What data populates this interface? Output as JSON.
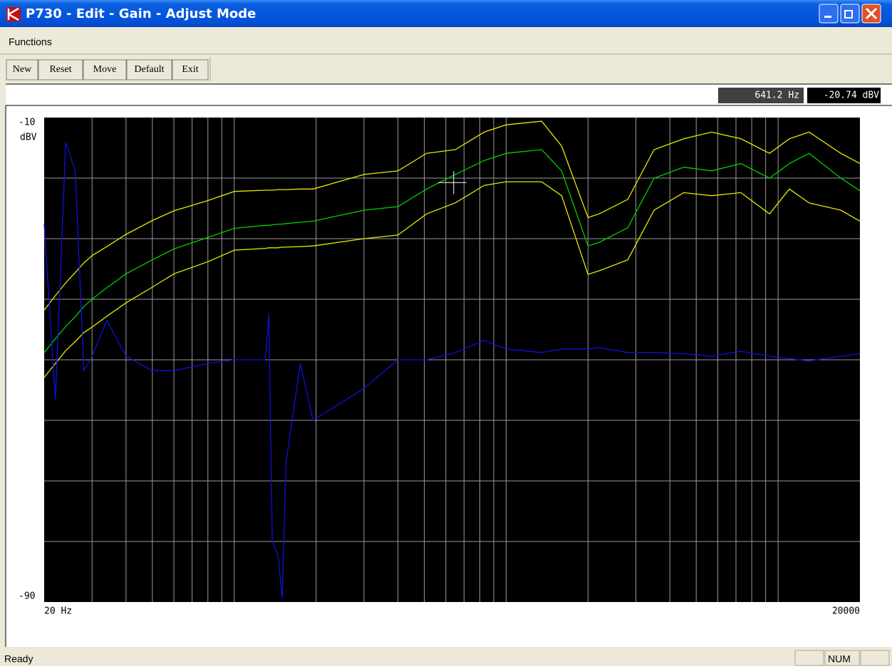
{
  "window": {
    "title": "P730 - Edit - Gain - Adjust Mode",
    "menu": [
      "Functions"
    ],
    "toolbar": [
      "New",
      "Reset",
      "Move",
      "Default",
      "Exit"
    ],
    "status": "Ready",
    "indicators": [
      "NUM"
    ]
  },
  "chart_data": {
    "type": "line",
    "y_label": "dBV",
    "xscale": "log",
    "x": [
      20,
      22,
      24,
      26,
      28,
      30,
      34,
      40,
      50,
      60,
      80,
      100,
      130,
      134,
      138,
      145,
      150,
      155,
      175,
      195,
      300,
      400,
      510,
      650,
      830,
      1000,
      1350,
      1600,
      2000,
      2200,
      2800,
      3500,
      4500,
      5700,
      7300,
      9300,
      11000,
      13000,
      17000,
      20000
    ],
    "series": [
      {
        "color": "#e8e800",
        "values": [
          -41.8,
          -39.4,
          -37.3,
          -35.6,
          -34.0,
          -32.8,
          -31.3,
          -29.3,
          -27.0,
          -25.4,
          -23.7,
          -22.2,
          -22.0,
          -22.0,
          -22.0,
          -21.9,
          -21.9,
          -21.9,
          -21.8,
          -21.8,
          -19.4,
          -18.8,
          -15.9,
          -15.3,
          -12.4,
          -11.2,
          -10.6,
          -14.7,
          -26.5,
          -25.9,
          -23.5,
          -15.3,
          -13.5,
          -12.4,
          -13.5,
          -15.9,
          -13.5,
          -12.4,
          -15.9,
          -17.6
        ]
      },
      {
        "color": "#00d000",
        "values": [
          -48.8,
          -46.5,
          -44.5,
          -42.9,
          -41.2,
          -40.0,
          -38.1,
          -35.8,
          -33.5,
          -31.7,
          -29.8,
          -28.3,
          -27.8,
          -27.8,
          -27.7,
          -27.6,
          -27.6,
          -27.5,
          -27.3,
          -27.1,
          -25.3,
          -24.7,
          -21.8,
          -19.4,
          -17.1,
          -15.9,
          -15.3,
          -18.8,
          -31.2,
          -30.6,
          -28.2,
          -20.0,
          -18.2,
          -18.8,
          -17.6,
          -20.0,
          -17.6,
          -15.9,
          -20.0,
          -22.1
        ]
      },
      {
        "color": "#e8e800",
        "values": [
          -52.9,
          -50.6,
          -48.5,
          -47.0,
          -45.5,
          -44.6,
          -42.8,
          -40.6,
          -38.0,
          -35.8,
          -33.8,
          -31.9,
          -31.6,
          -31.5,
          -31.5,
          -31.5,
          -31.4,
          -31.4,
          -31.3,
          -31.2,
          -30.0,
          -29.4,
          -25.9,
          -24.1,
          -21.2,
          -20.6,
          -20.6,
          -22.9,
          -35.9,
          -35.3,
          -33.5,
          -25.3,
          -22.4,
          -22.9,
          -22.4,
          -25.9,
          -21.8,
          -24.1,
          -25.3,
          -27.1
        ]
      },
      {
        "color": "#1010e0",
        "values": [
          -27.6,
          -56.5,
          -14.1,
          -18.8,
          -51.8,
          -49.4,
          -43.5,
          -49.4,
          -51.8,
          -51.8,
          -50.6,
          -50.0,
          -50.0,
          -42.4,
          -80.0,
          -82.4,
          -89.4,
          -67.0,
          -50.6,
          -60.0,
          -54.7,
          -50.0,
          -50.0,
          -48.8,
          -46.8,
          -48.2,
          -48.8,
          -48.2,
          -48.2,
          -48.0,
          -48.8,
          -48.8,
          -49.0,
          -49.4,
          -48.6,
          -49.4,
          -49.8,
          -50.2,
          -49.4,
          -49.0
        ]
      }
    ],
    "xlim": [
      20,
      20000
    ],
    "xticks": [
      {
        "value": 20,
        "label": "20 Hz"
      },
      20000
    ],
    "xgrid": [
      30,
      40,
      50,
      60,
      70,
      80,
      90,
      100,
      200,
      300,
      400,
      500,
      600,
      700,
      800,
      900,
      1000,
      2000,
      3000,
      4000,
      5000,
      6000,
      7000,
      8000,
      9000,
      10000
    ],
    "ylim": [
      -90,
      -10
    ],
    "yticks": [
      -10,
      -90
    ],
    "ygrid": [
      -20,
      -30,
      -40,
      -50,
      -60,
      -70,
      -80
    ],
    "cursor": {
      "x": 641.2,
      "y": -20.74,
      "x_label": "641.2 Hz",
      "y_label": "-20.74 dBV"
    }
  }
}
